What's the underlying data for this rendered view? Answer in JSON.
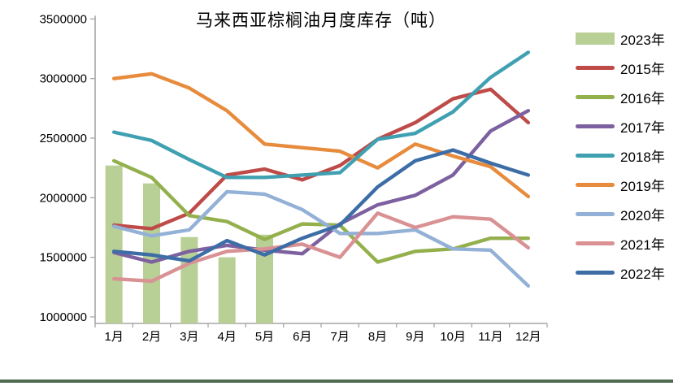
{
  "chart_data": {
    "type": "combo-bar-line",
    "title": "马来西亚棕榈油月度库存（吨）",
    "unit": "吨",
    "legend_position": "right",
    "grid": false,
    "categories": [
      "1月",
      "2月",
      "3月",
      "4月",
      "5月",
      "6月",
      "7月",
      "8月",
      "9月",
      "10月",
      "11月",
      "12月"
    ],
    "y_axis": {
      "min": 1000000,
      "max": 3500000,
      "tick_step": 500000,
      "ticks": [
        3500000,
        3000000,
        2500000,
        2000000,
        1500000,
        1000000
      ]
    },
    "bar_series": {
      "name": "2023年",
      "color": "#b8cf96",
      "values": [
        2270000,
        2120000,
        1670000,
        1500000,
        1690000,
        null,
        null,
        null,
        null,
        null,
        null,
        null
      ]
    },
    "line_series": [
      {
        "name": "2015年",
        "color": "#be4b48",
        "values": [
          1770000,
          1740000,
          1870000,
          2190000,
          2240000,
          2150000,
          2270000,
          2490000,
          2630000,
          2830000,
          2910000,
          2630000
        ]
      },
      {
        "name": "2016年",
        "color": "#94b04d",
        "values": [
          2310000,
          2170000,
          1850000,
          1800000,
          1650000,
          1780000,
          1770000,
          1460000,
          1550000,
          1570000,
          1660000,
          1660000
        ]
      },
      {
        "name": "2017年",
        "color": "#7d60a0",
        "values": [
          1540000,
          1460000,
          1550000,
          1600000,
          1560000,
          1530000,
          1780000,
          1940000,
          2020000,
          2190000,
          2560000,
          2730000
        ]
      },
      {
        "name": "2019年",
        "color": "#e78b3c",
        "values": [
          3000000,
          3040000,
          2920000,
          2730000,
          2450000,
          2420000,
          2390000,
          2250000,
          2450000,
          2350000,
          2260000,
          2010000
        ]
      },
      {
        "name": "2018年",
        "color": "#3fa0b1",
        "values": [
          2550000,
          2480000,
          2320000,
          2170000,
          2170000,
          2190000,
          2210000,
          2490000,
          2540000,
          2720000,
          3010000,
          3220000
        ]
      },
      {
        "name": "2020年",
        "color": "#93b1d6",
        "values": [
          1760000,
          1680000,
          1730000,
          2050000,
          2030000,
          1900000,
          1700000,
          1700000,
          1730000,
          1570000,
          1560000,
          1260000
        ]
      },
      {
        "name": "2021年",
        "color": "#d99193",
        "values": [
          1320000,
          1300000,
          1450000,
          1550000,
          1570000,
          1610000,
          1500000,
          1870000,
          1750000,
          1840000,
          1820000,
          1580000
        ]
      },
      {
        "name": "2022年",
        "color": "#3c6da6",
        "values": [
          1550000,
          1520000,
          1470000,
          1640000,
          1520000,
          1660000,
          1770000,
          2090000,
          2310000,
          2400000,
          2290000,
          2190000
        ]
      }
    ],
    "legend_items": [
      {
        "label": "2023年",
        "color": "#b8cf96",
        "marker": "bar"
      },
      {
        "label": "2015年",
        "color": "#be4b48",
        "marker": "line"
      },
      {
        "label": "2016年",
        "color": "#94b04d",
        "marker": "line"
      },
      {
        "label": "2017年",
        "color": "#7d60a0",
        "marker": "line"
      },
      {
        "label": "2018年",
        "color": "#3fa0b1",
        "marker": "line"
      },
      {
        "label": "2019年",
        "color": "#e78b3c",
        "marker": "line"
      },
      {
        "label": "2020年",
        "color": "#93b1d6",
        "marker": "line"
      },
      {
        "label": "2021年",
        "color": "#d99193",
        "marker": "line"
      },
      {
        "label": "2022年",
        "color": "#3c6da6",
        "marker": "line"
      }
    ],
    "axis_color": "#a6a6a6",
    "footer_divider_color": "#4e6b50"
  }
}
